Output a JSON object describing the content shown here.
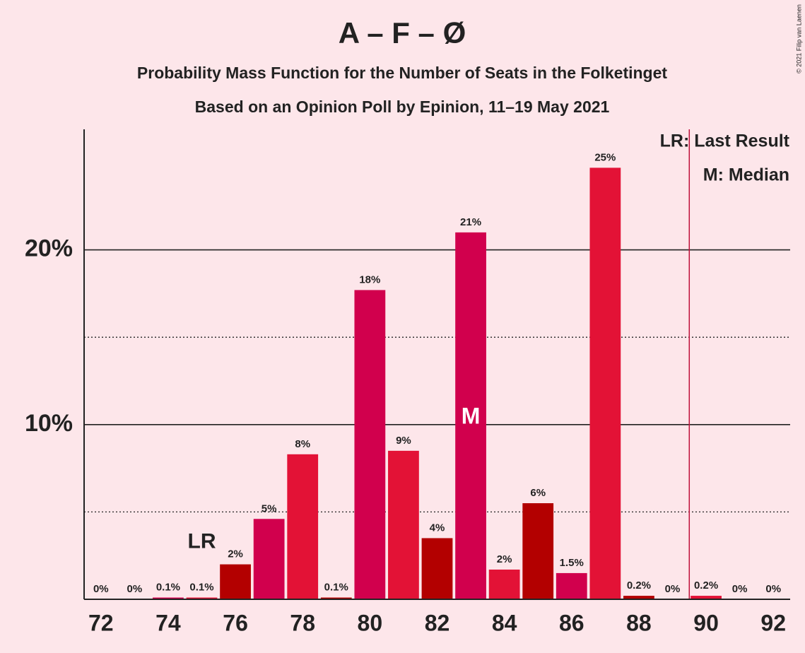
{
  "chart_data": {
    "type": "bar",
    "title": "A – F – Ø",
    "subtitle": [
      "Probability Mass Function for the Number of Seats in the Folketinget",
      "Based on an Opinion Poll by Epinion, 11–19 May 2021"
    ],
    "x": [
      72,
      73,
      74,
      75,
      76,
      77,
      78,
      79,
      80,
      81,
      82,
      83,
      84,
      85,
      86,
      87,
      88,
      89,
      90,
      91,
      92
    ],
    "values": [
      0,
      0,
      0.1,
      0.1,
      2.0,
      4.6,
      8.3,
      0.1,
      17.7,
      8.5,
      3.5,
      21.0,
      1.7,
      5.5,
      1.5,
      24.7,
      0.2,
      0,
      0.2,
      0,
      0
    ],
    "value_labels": [
      "0%",
      "0%",
      "0.1%",
      "0.1%",
      "2%",
      "5%",
      "8%",
      "0.1%",
      "18%",
      "9%",
      "4%",
      "21%",
      "2%",
      "6%",
      "1.5%",
      "25%",
      "0.2%",
      "0%",
      "0.2%",
      "0%",
      "0%"
    ],
    "colors": [
      "#e31236",
      "#b30000",
      "#d1004d",
      "#e31236",
      "#b30000",
      "#d1004d",
      "#e31236",
      "#b30000",
      "#d1004d",
      "#e31236",
      "#b30000",
      "#d1004d",
      "#e31236",
      "#b30000",
      "#d1004d",
      "#e31236",
      "#b30000",
      "#d1004d",
      "#e31236",
      "#b30000",
      "#d1004d"
    ],
    "xlim": [
      71.5,
      92.5
    ],
    "xticks": [
      72,
      74,
      76,
      78,
      80,
      82,
      84,
      86,
      88,
      90,
      92
    ],
    "ylim": [
      0,
      26.9
    ],
    "yticks": [
      {
        "value": 10,
        "label": "10%"
      },
      {
        "value": 20,
        "label": "20%"
      }
    ],
    "minor_yticks": [
      5,
      15
    ],
    "last_result": {
      "x": 75,
      "label": "LR"
    },
    "median": {
      "x": 83,
      "label": "M"
    },
    "majority_line": 89.5,
    "legend": [
      "LR: Last Result",
      "M: Median"
    ],
    "copyright": "© 2021 Filip van Laenen"
  }
}
